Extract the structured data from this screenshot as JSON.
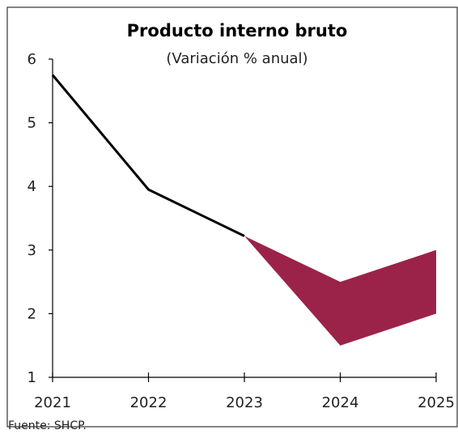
{
  "chart_data": {
    "type": "line",
    "title": "Producto interno bruto",
    "subtitle": "(Variación % anual)",
    "x": [
      "2021",
      "2022",
      "2023",
      "2024",
      "2025"
    ],
    "series": [
      {
        "values": [
          5.75,
          3.95,
          3.22,
          null,
          null
        ]
      }
    ],
    "forecast_range": {
      "x": [
        "2023",
        "2024",
        "2025"
      ],
      "upper": [
        3.22,
        2.5,
        3.0
      ],
      "lower": [
        3.22,
        1.5,
        2.0
      ]
    },
    "ylim": [
      1,
      6
    ],
    "yticks": [
      "1",
      "2",
      "3",
      "4",
      "5",
      "6"
    ],
    "grid": false,
    "colors": {
      "line": "#000000",
      "range": "#9b2349",
      "axis": "#000000",
      "border": "#333333"
    },
    "source": "Fuente: SHCP."
  }
}
